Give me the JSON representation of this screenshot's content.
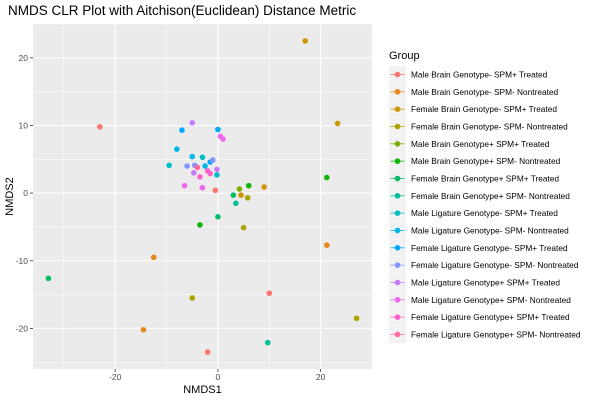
{
  "chart_data": {
    "type": "scatter",
    "title": "NMDS CLR Plot with Aitchison(Euclidean) Distance Metric",
    "xlabel": "NMDS1",
    "ylabel": "NMDS2",
    "xlim": [
      -36,
      30
    ],
    "ylim": [
      -26,
      25
    ],
    "x_ticks": [
      -20,
      0,
      20
    ],
    "y_ticks": [
      -20,
      -10,
      0,
      10,
      20
    ],
    "x_tick_labels": [
      "-20",
      "0",
      "20"
    ],
    "y_tick_labels": [
      "-20",
      "-10",
      "0",
      "10",
      "20"
    ],
    "grid": true,
    "legend": {
      "title": "Group",
      "placement": "right"
    },
    "series": [
      {
        "name": "Male Brain Genotype- SPM+ Treated",
        "color": "#F8766D",
        "points": [
          [
            -23,
            9.8
          ],
          [
            -2,
            -23.5
          ],
          [
            10,
            -14.8
          ],
          [
            -0.5,
            0.4
          ]
        ]
      },
      {
        "name": "Male Brain Genotype- SPM- Nontreated",
        "color": "#E7861B",
        "points": [
          [
            -12.5,
            -9.5
          ],
          [
            -14.5,
            -20.2
          ],
          [
            21.2,
            -7.7
          ]
        ]
      },
      {
        "name": "Female Brain Genotype- SPM+ Treated",
        "color": "#CD9600",
        "points": [
          [
            17,
            22.5
          ],
          [
            23.3,
            10.3
          ],
          [
            9,
            0.9
          ],
          [
            4.5,
            -0.3
          ]
        ]
      },
      {
        "name": "Female Brain Genotype- SPM- Nontreated",
        "color": "#A9A400",
        "points": [
          [
            27,
            -18.5
          ],
          [
            5,
            -5.1
          ],
          [
            -5,
            -15.5
          ],
          [
            5.8,
            -0.7
          ]
        ]
      },
      {
        "name": "Male Brain Genotype+ SPM+ Treated",
        "color": "#7CAE00",
        "points": [
          [
            4.2,
            0.6
          ]
        ]
      },
      {
        "name": "Male Brain Genotype+ SPM- Nontreated",
        "color": "#0CB702",
        "points": [
          [
            21.2,
            2.3
          ],
          [
            -3.5,
            -4.7
          ],
          [
            6,
            1.1
          ]
        ]
      },
      {
        "name": "Female Brain Genotype+ SPM+ Treated",
        "color": "#00BE67",
        "points": [
          [
            -33,
            -12.6
          ],
          [
            0,
            -3.5
          ],
          [
            3,
            -0.3
          ]
        ]
      },
      {
        "name": "Female Brain Genotype+ SPM- Nontreated",
        "color": "#00C19A",
        "points": [
          [
            9.7,
            -22.1
          ],
          [
            3.5,
            -1.5
          ]
        ]
      },
      {
        "name": "Male Ligature Genotype- SPM+ Treated",
        "color": "#00BFC4",
        "points": [
          [
            -9.5,
            4.1
          ],
          [
            -3,
            5.3
          ],
          [
            -0.2,
            2.7
          ]
        ]
      },
      {
        "name": "Male Ligature Genotype- SPM- Nontreated",
        "color": "#00B8E7",
        "points": [
          [
            -8,
            6.5
          ],
          [
            -2.5,
            4
          ],
          [
            -5,
            5.4
          ]
        ]
      },
      {
        "name": "Female Ligature Genotype- SPM+ Treated",
        "color": "#00A9FF",
        "points": [
          [
            -7,
            9.3
          ],
          [
            0,
            9.4
          ],
          [
            -1.5,
            4.6
          ]
        ]
      },
      {
        "name": "Female Ligature Genotype- SPM- Nontreated",
        "color": "#8494FF",
        "points": [
          [
            -6,
            4
          ],
          [
            -1,
            4.9
          ],
          [
            -4.5,
            4.1
          ]
        ]
      },
      {
        "name": "Male Ligature Genotype+ SPM+ Treated",
        "color": "#C77CFF",
        "points": [
          [
            -5,
            10.4
          ],
          [
            -4.7,
            3
          ],
          [
            -0.2,
            3.5
          ]
        ]
      },
      {
        "name": "Male Ligature Genotype+ SPM- Nontreated",
        "color": "#ED68ED",
        "points": [
          [
            -6.5,
            1.1
          ],
          [
            -3,
            0.8
          ],
          [
            0.5,
            8.4
          ],
          [
            1,
            8
          ]
        ]
      },
      {
        "name": "Female Ligature Genotype+ SPM+ Treated",
        "color": "#FF61CC",
        "points": [
          [
            -3.5,
            2.4
          ],
          [
            -2,
            3.3
          ],
          [
            -1.5,
            2.9
          ]
        ]
      },
      {
        "name": "Female Ligature Genotype+ SPM- Nontreated",
        "color": "#FF68A1",
        "points": [
          [
            -4,
            3.8
          ]
        ]
      }
    ]
  }
}
